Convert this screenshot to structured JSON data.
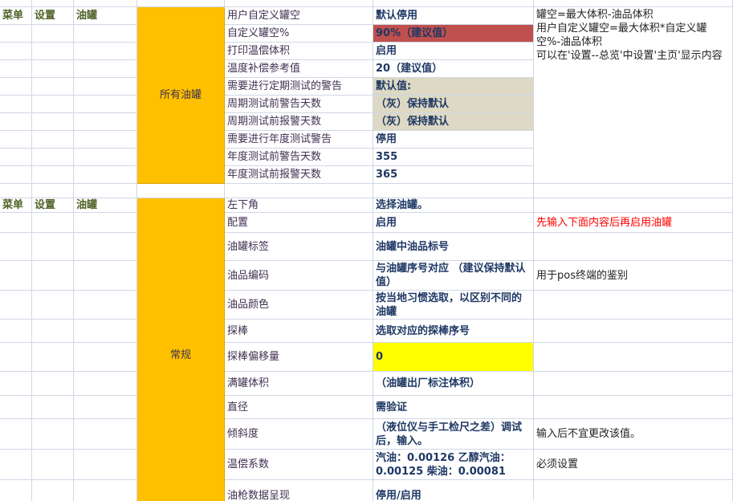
{
  "sections": [
    {
      "menu": [
        "菜单",
        "设置",
        "油罐"
      ],
      "group": "所有油罐",
      "note": [
        "罐空=最大体积-油品体积",
        "用户自定义罐空=最大体积*自定义罐空%-油品体积",
        "可以在'设置--总览'中设置'主页'显示内容"
      ],
      "rows": [
        {
          "label": "用户自定义罐空",
          "value": "默认停用"
        },
        {
          "label": "自定义罐空%",
          "value": "90%（建议值）",
          "fill": "#c0504d"
        },
        {
          "label": "打印温偿体积",
          "value": "启用"
        },
        {
          "label": "温度补偿参考值",
          "value": "20（建议值）"
        },
        {
          "label": "需要进行定期测试的警告",
          "value": "默认值:",
          "fill": "#ddd9c4"
        },
        {
          "label": "周期测试前警告天数",
          "value": "（灰）保持默认",
          "fill": "#ddd9c4"
        },
        {
          "label": "周期测试前报警天数",
          "value": "（灰）保持默认",
          "fill": "#ddd9c4"
        },
        {
          "label": "需要进行年度测试警告",
          "value": "停用"
        },
        {
          "label": "年度测试前警告天数",
          "value": "355"
        },
        {
          "label": "年度测试前报警天数",
          "value": "365"
        }
      ]
    },
    {
      "menu": [
        "菜单",
        "设置",
        "油罐"
      ],
      "group": "常规",
      "header_label": "左下角",
      "header_value": "选择油罐。",
      "rows": [
        {
          "label": "配置",
          "value": "启用",
          "note": "先输入下面内容后再启用油罐",
          "note_color": "#ff0000"
        },
        {
          "label": "油罐标签",
          "value": "油罐中油品标号"
        },
        {
          "label": "油品编码",
          "value": "与油罐序号对应 （建议保持默认值）",
          "note": "用于pos终端的鉴别"
        },
        {
          "label": "油品颜色",
          "value": "按当地习惯选取，以区别不同的油罐"
        },
        {
          "label": "探棒",
          "value": "选取对应的探棒序号"
        },
        {
          "label": "探棒偏移量",
          "value": "0",
          "fill": "#ffff00"
        },
        {
          "label": "满罐体积",
          "value": "（油罐出厂标注体积）"
        },
        {
          "label": "直径",
          "value": "需验证"
        },
        {
          "label": "倾斜度",
          "value": "（液位仪与手工检尺之差）调试后，输入。",
          "note": "输入后不宜更改该值。"
        },
        {
          "label": "温偿系数",
          "value": "汽油：0.00126 乙醇汽油：0.00125  柴油：0.00081",
          "note": "必须设置"
        },
        {
          "label": "油枪数据呈现",
          "value": "停用/启用"
        }
      ]
    }
  ]
}
